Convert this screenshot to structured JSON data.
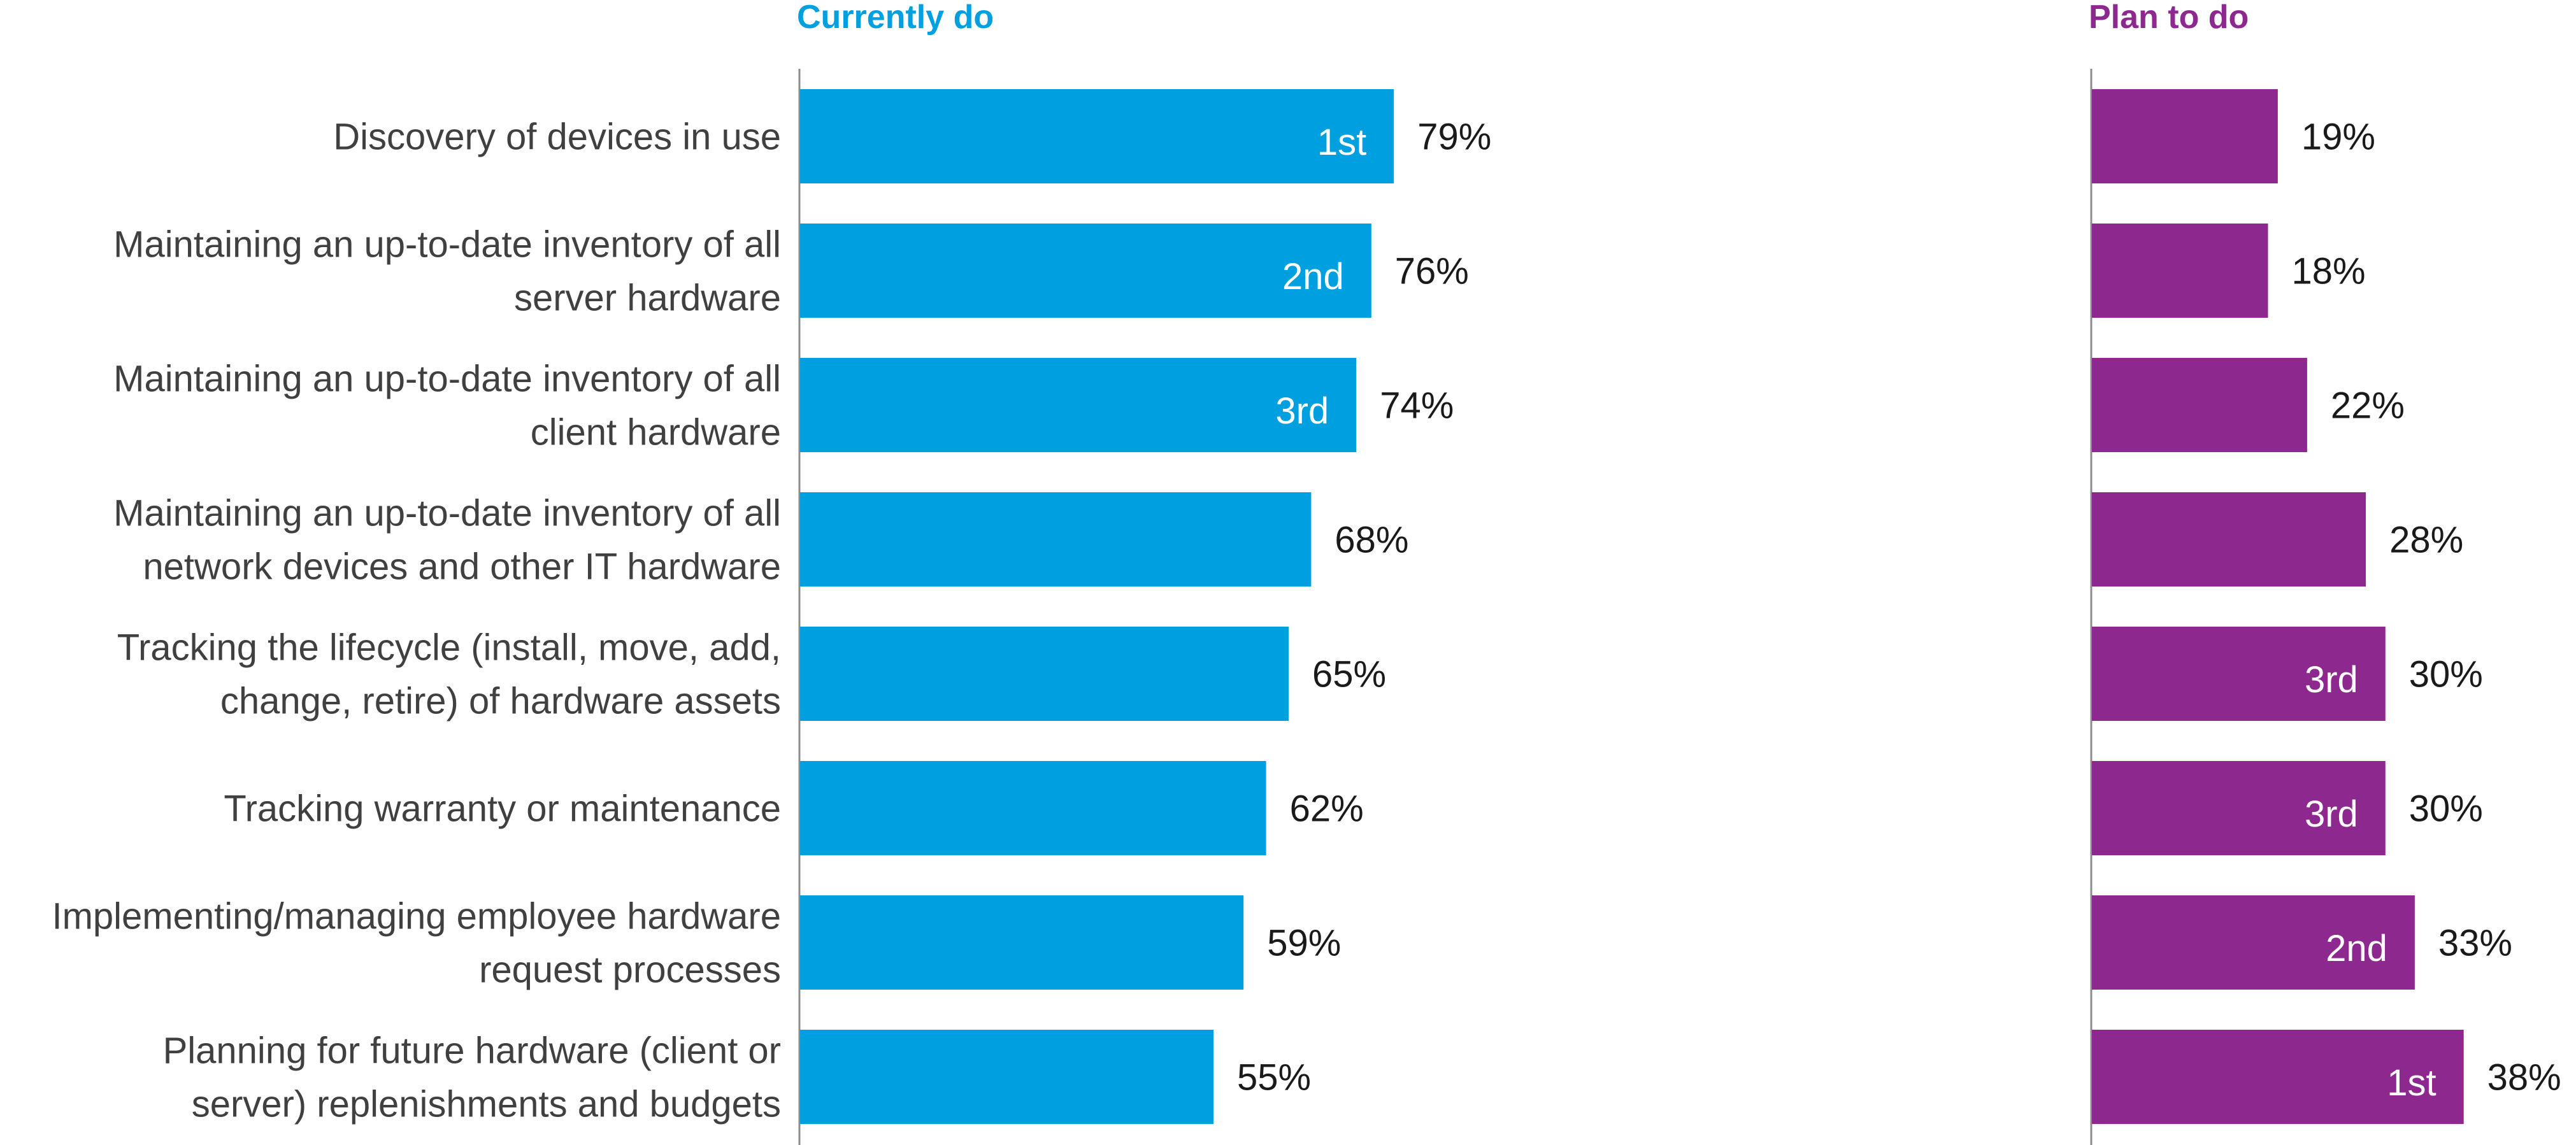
{
  "chart_data": {
    "type": "bar",
    "orientation": "horizontal",
    "categories": [
      [
        "Discovery of devices in use"
      ],
      [
        "Maintaining an up-to-date inventory of all",
        "server hardware"
      ],
      [
        "Maintaining an up-to-date inventory of all",
        "client hardware"
      ],
      [
        "Maintaining an up-to-date inventory of all",
        "network devices and other IT hardware"
      ],
      [
        "Tracking the lifecycle (install, move, add,",
        "change, retire) of hardware assets"
      ],
      [
        "Tracking warranty or maintenance"
      ],
      [
        "Implementing/managing employee hardware",
        "request processes"
      ],
      [
        "Planning for future hardware (client or",
        "server) replenishments and budgets"
      ]
    ],
    "series": [
      {
        "name": "Currently do",
        "color": "#009FDF",
        "values": [
          79,
          76,
          74,
          68,
          65,
          62,
          59,
          55
        ],
        "value_labels": [
          "79%",
          "76%",
          "74%",
          "68%",
          "65%",
          "62%",
          "59%",
          "55%"
        ],
        "rank_labels": [
          "1st",
          "2nd",
          "3rd",
          "",
          "",
          "",
          "",
          ""
        ]
      },
      {
        "name": "Plan to do",
        "color": "#8D288F",
        "values": [
          19,
          18,
          22,
          28,
          30,
          30,
          33,
          38
        ],
        "value_labels": [
          "19%",
          "18%",
          "22%",
          "28%",
          "30%",
          "30%",
          "33%",
          "38%"
        ],
        "rank_labels": [
          "",
          "",
          "",
          "",
          "3rd",
          "3rd",
          "2nd",
          "1st"
        ]
      }
    ],
    "title": "",
    "xlabel": "",
    "ylabel": "",
    "grid": false,
    "legend": "none"
  }
}
